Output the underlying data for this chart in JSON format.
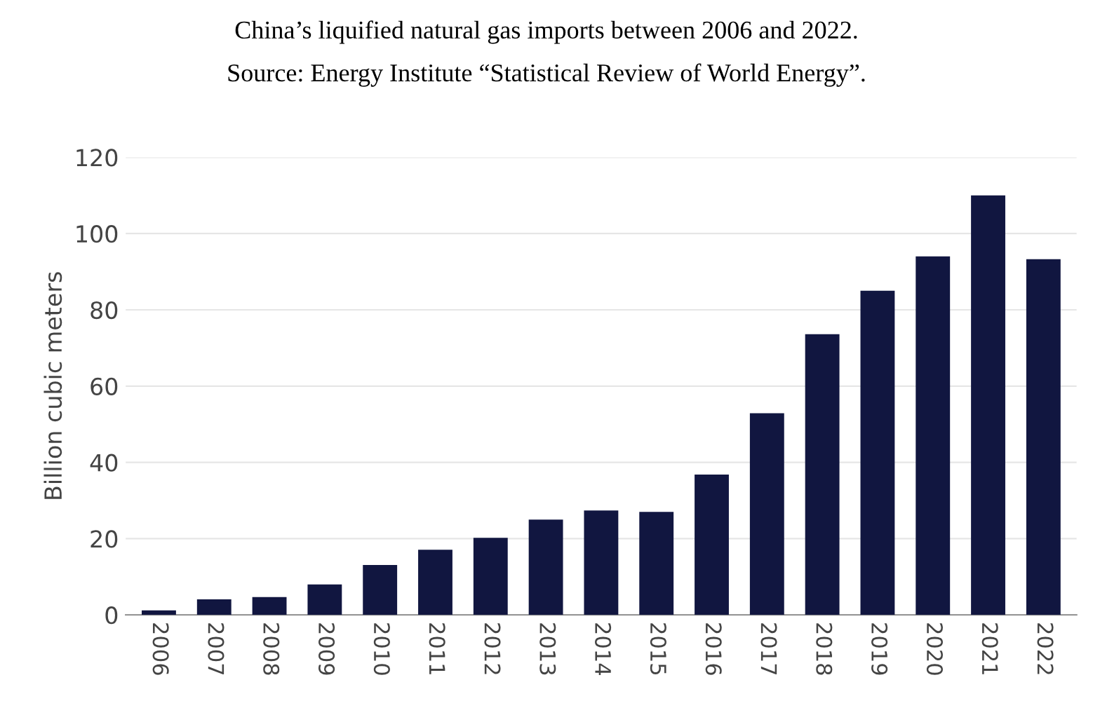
{
  "chart_data": {
    "type": "bar",
    "title": "China’s liquified natural gas imports between 2006 and 2022.",
    "subtitle": "Source: Energy Institute “Statistical Review of World Energy”.",
    "ylabel": "Billion cubic meters",
    "categories": [
      "2006",
      "2007",
      "2008",
      "2009",
      "2010",
      "2011",
      "2012",
      "2013",
      "2014",
      "2015",
      "2016",
      "2017",
      "2018",
      "2019",
      "2020",
      "2021",
      "2022"
    ],
    "values": [
      1.2,
      4.1,
      4.7,
      8.0,
      13.1,
      17.1,
      20.2,
      25.0,
      27.4,
      27.0,
      36.8,
      52.9,
      73.6,
      85.0,
      94.0,
      110.0,
      93.3
    ],
    "color": "#111640",
    "ylim": [
      0,
      120
    ],
    "yticks": [
      0,
      20,
      40,
      60,
      80,
      100,
      120
    ],
    "grid": "y",
    "legend": false
  }
}
